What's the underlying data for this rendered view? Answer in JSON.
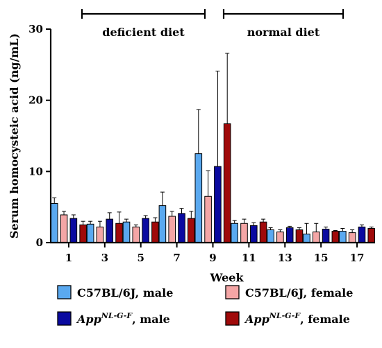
{
  "chart_data": {
    "type": "bar",
    "title": "",
    "xlabel": "Week",
    "ylabel": "Serum homocysteic acid (ng/mL)",
    "ylim": [
      0,
      30
    ],
    "yticks": [
      0,
      10,
      20,
      30
    ],
    "categories": [
      "1",
      "3",
      "5",
      "7",
      "9",
      "11",
      "13",
      "15",
      "17"
    ],
    "series": [
      {
        "name": "C57BL/6J, male",
        "name_main": "C57BL/6J",
        "name_sup": "",
        "name_suffix": ", male",
        "color": "#5aa9f0",
        "values": [
          5.5,
          2.6,
          2.9,
          5.2,
          12.5,
          2.7,
          1.8,
          1.2,
          1.6
        ],
        "errors": [
          0.8,
          0.4,
          0.4,
          1.9,
          6.2,
          0.4,
          0.3,
          1.5,
          0.4
        ]
      },
      {
        "name": "C57BL/6J, female",
        "name_main": "C57BL/6J",
        "name_sup": "",
        "name_suffix": ", female",
        "color": "#f4a6a6",
        "values": [
          3.9,
          2.2,
          2.2,
          3.7,
          6.5,
          2.7,
          1.5,
          1.5,
          1.4
        ],
        "errors": [
          0.5,
          0.8,
          0.3,
          0.7,
          3.6,
          0.6,
          0.3,
          1.2,
          0.4
        ]
      },
      {
        "name": "App NL-G-F, male",
        "name_main": "App",
        "name_sup": "NL-G-F",
        "name_suffix": ", male",
        "color": "#0a0aa0",
        "values": [
          3.4,
          3.3,
          3.4,
          4.1,
          10.7,
          2.4,
          2.1,
          1.9,
          2.2
        ],
        "errors": [
          0.5,
          0.9,
          0.4,
          0.7,
          13.4,
          0.4,
          0.2,
          0.3,
          0.3
        ]
      },
      {
        "name": "App NL-G-F, female",
        "name_main": "App",
        "name_sup": "NL-G-F",
        "name_suffix": ", female",
        "color": "#a00a0a",
        "values": [
          2.5,
          2.7,
          2.9,
          3.4,
          16.7,
          2.9,
          1.8,
          1.6,
          2.0
        ],
        "errors": [
          0.5,
          1.6,
          0.6,
          1.0,
          9.9,
          0.4,
          0.3,
          0.1,
          0.2
        ]
      }
    ],
    "annotations": [
      {
        "label": "deficient diet",
        "from": "1",
        "to": "9"
      },
      {
        "label": "normal diet",
        "from": "9",
        "to": "17"
      }
    ],
    "legend_position": "bottom",
    "grid": false
  }
}
